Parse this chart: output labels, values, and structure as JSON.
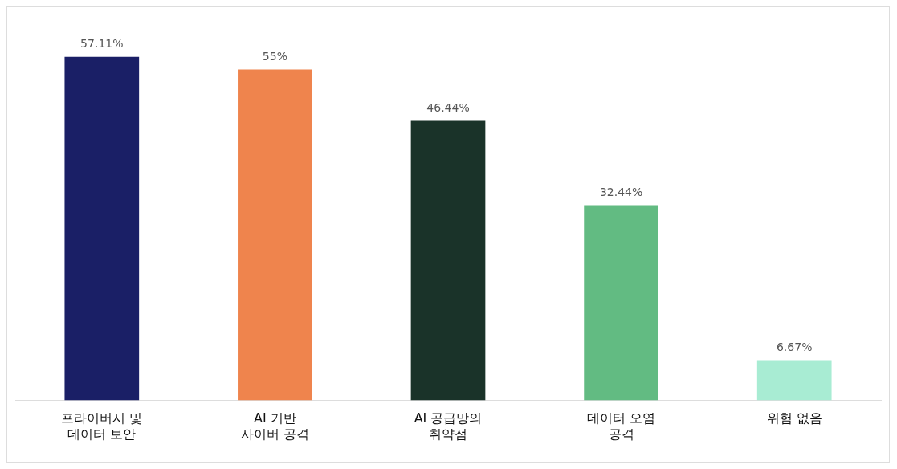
{
  "chart_data": {
    "type": "bar",
    "categories": [
      "프라이버시 및\n데이터 보안",
      "AI 기반\n사이버 공격",
      "AI 공급망의\n취약점",
      "데이터 오염\n공격",
      "위험 없음"
    ],
    "values": [
      57.11,
      55,
      46.44,
      32.44,
      6.67
    ],
    "colors": [
      "#1a1f66",
      "#ef844d",
      "#1a3329",
      "#62bb82",
      "#a8ecd3"
    ],
    "value_labels": [
      "57.11%",
      "55%",
      "46.44%",
      "32.44%",
      "6.67%"
    ],
    "tick_labels": "x",
    "grid": false,
    "legend": false
  }
}
